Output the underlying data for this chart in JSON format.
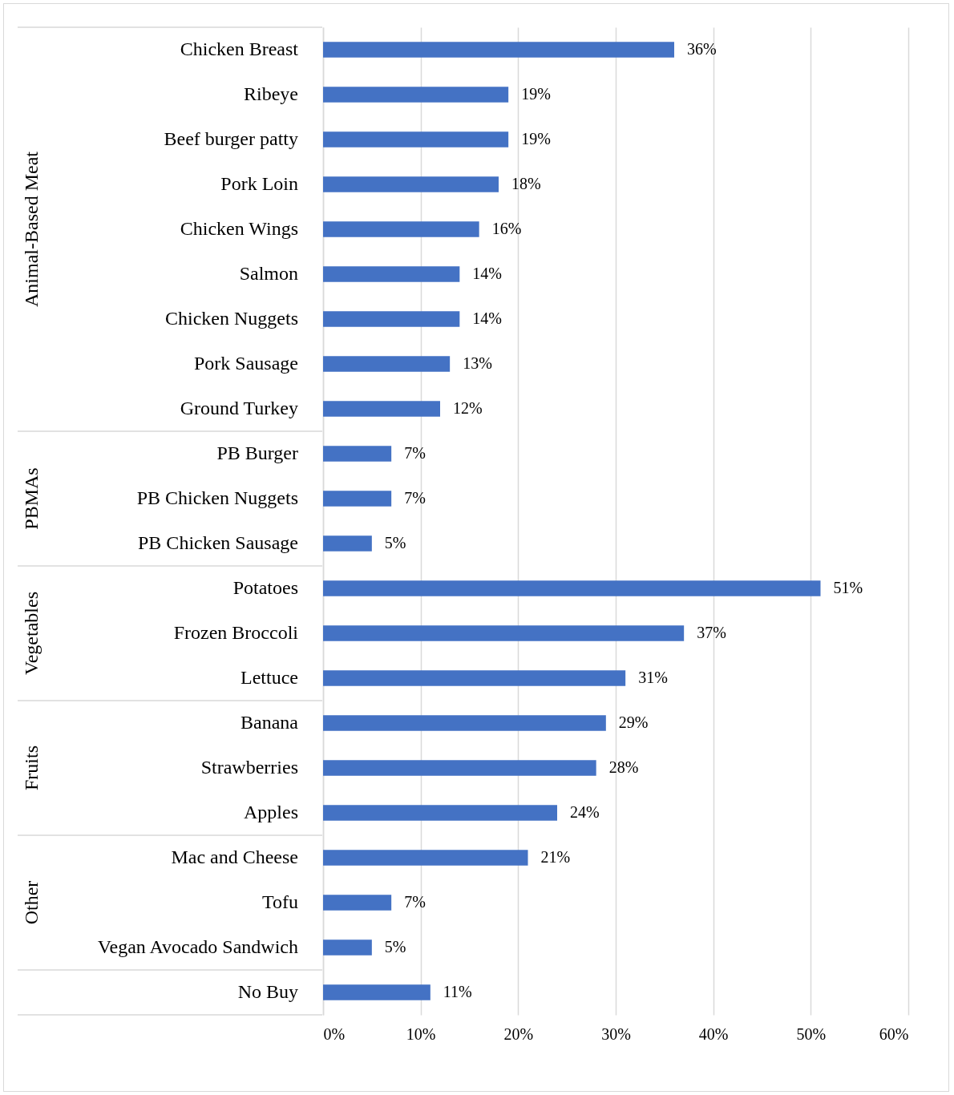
{
  "chart_data": {
    "type": "bar",
    "orientation": "horizontal",
    "categories": [
      "Chicken Breast",
      "Ribeye",
      "Beef burger patty",
      "Pork Loin",
      "Chicken Wings",
      "Salmon",
      "Chicken Nuggets",
      "Pork Sausage",
      "Ground Turkey",
      "PB Burger",
      "PB Chicken Nuggets",
      "PB Chicken Sausage",
      "Potatoes",
      "Frozen Broccoli",
      "Lettuce",
      "Banana",
      "Strawberries",
      "Apples",
      "Mac and Cheese",
      "Tofu",
      "Vegan Avocado Sandwich",
      "No Buy"
    ],
    "values": [
      36,
      19,
      19,
      18,
      16,
      14,
      14,
      13,
      12,
      7,
      7,
      5,
      51,
      37,
      31,
      29,
      28,
      24,
      21,
      7,
      5,
      11
    ],
    "value_labels": [
      "36%",
      "19%",
      "19%",
      "18%",
      "16%",
      "14%",
      "14%",
      "13%",
      "12%",
      "7%",
      "7%",
      "5%",
      "51%",
      "37%",
      "31%",
      "29%",
      "28%",
      "24%",
      "21%",
      "7%",
      "5%",
      "11%"
    ],
    "color": "#4472c4",
    "xlim": [
      0,
      60
    ],
    "xticks": [
      {
        "value": 0,
        "label": "0%"
      },
      {
        "value": 10,
        "label": "10%"
      },
      {
        "value": 20,
        "label": "20%"
      },
      {
        "value": 30,
        "label": "30%"
      },
      {
        "value": 40,
        "label": "40%"
      },
      {
        "value": 50,
        "label": "50%"
      },
      {
        "value": 60,
        "label": "60%"
      }
    ],
    "grid": "x",
    "annotations": [
      "Animal-Based Meat",
      "PBMAs",
      "Vegetables",
      "Fruits",
      "Other"
    ]
  }
}
